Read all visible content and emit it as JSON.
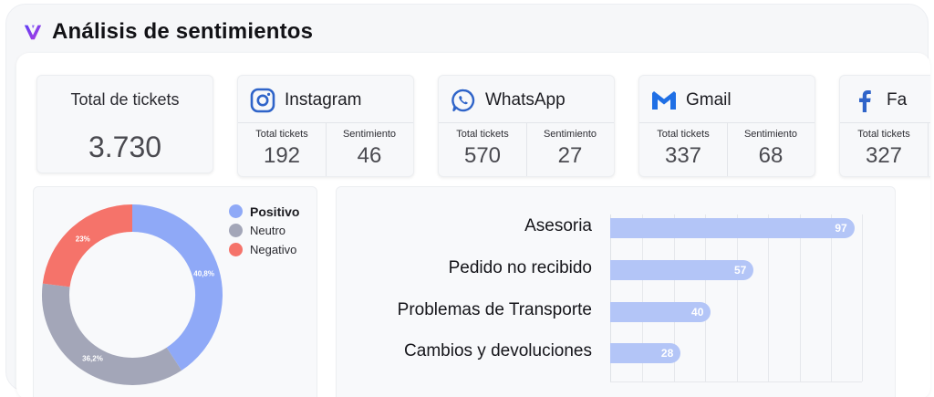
{
  "header": {
    "title": "Análisis de sentimientos",
    "logo_icon": "v-logo-icon"
  },
  "total": {
    "label": "Total de tickets",
    "value": "3.730"
  },
  "channels": [
    {
      "name": "Instagram",
      "icon": "instagram-icon",
      "tickets_label": "Total tickets",
      "tickets": "192",
      "sentiment_label": "Sentimiento",
      "sentiment": "46"
    },
    {
      "name": "WhatsApp",
      "icon": "whatsapp-icon",
      "tickets_label": "Total tickets",
      "tickets": "570",
      "sentiment_label": "Sentimiento",
      "sentiment": "27"
    },
    {
      "name": "Gmail",
      "icon": "gmail-icon",
      "tickets_label": "Total tickets",
      "tickets": "337",
      "sentiment_label": "Sentimiento",
      "sentiment": "68"
    },
    {
      "name": "Fa",
      "icon": "facebook-icon",
      "tickets_label": "Total tickets",
      "tickets": "327",
      "sentiment_label": "",
      "sentiment": ""
    }
  ],
  "colors": {
    "positivo": "#8fa9f7",
    "neutro": "#a3a6b8",
    "negativo": "#f5736a",
    "bar": "#b3c5f7"
  },
  "chart_data": [
    {
      "type": "pie",
      "categories": [
        "Positivo",
        "Neutro",
        "Negativo"
      ],
      "values": [
        40.8,
        36.2,
        23
      ],
      "labels": [
        "40,8%",
        "36,2%",
        "23%"
      ]
    },
    {
      "type": "bar",
      "orientation": "horizontal",
      "categories": [
        "Asesoria",
        "Pedido no recibido",
        "Problemas de Transporte",
        "Cambios y devoluciones"
      ],
      "values": [
        97,
        57,
        40,
        28
      ],
      "xlim": [
        0,
        100
      ],
      "grid": true
    }
  ]
}
